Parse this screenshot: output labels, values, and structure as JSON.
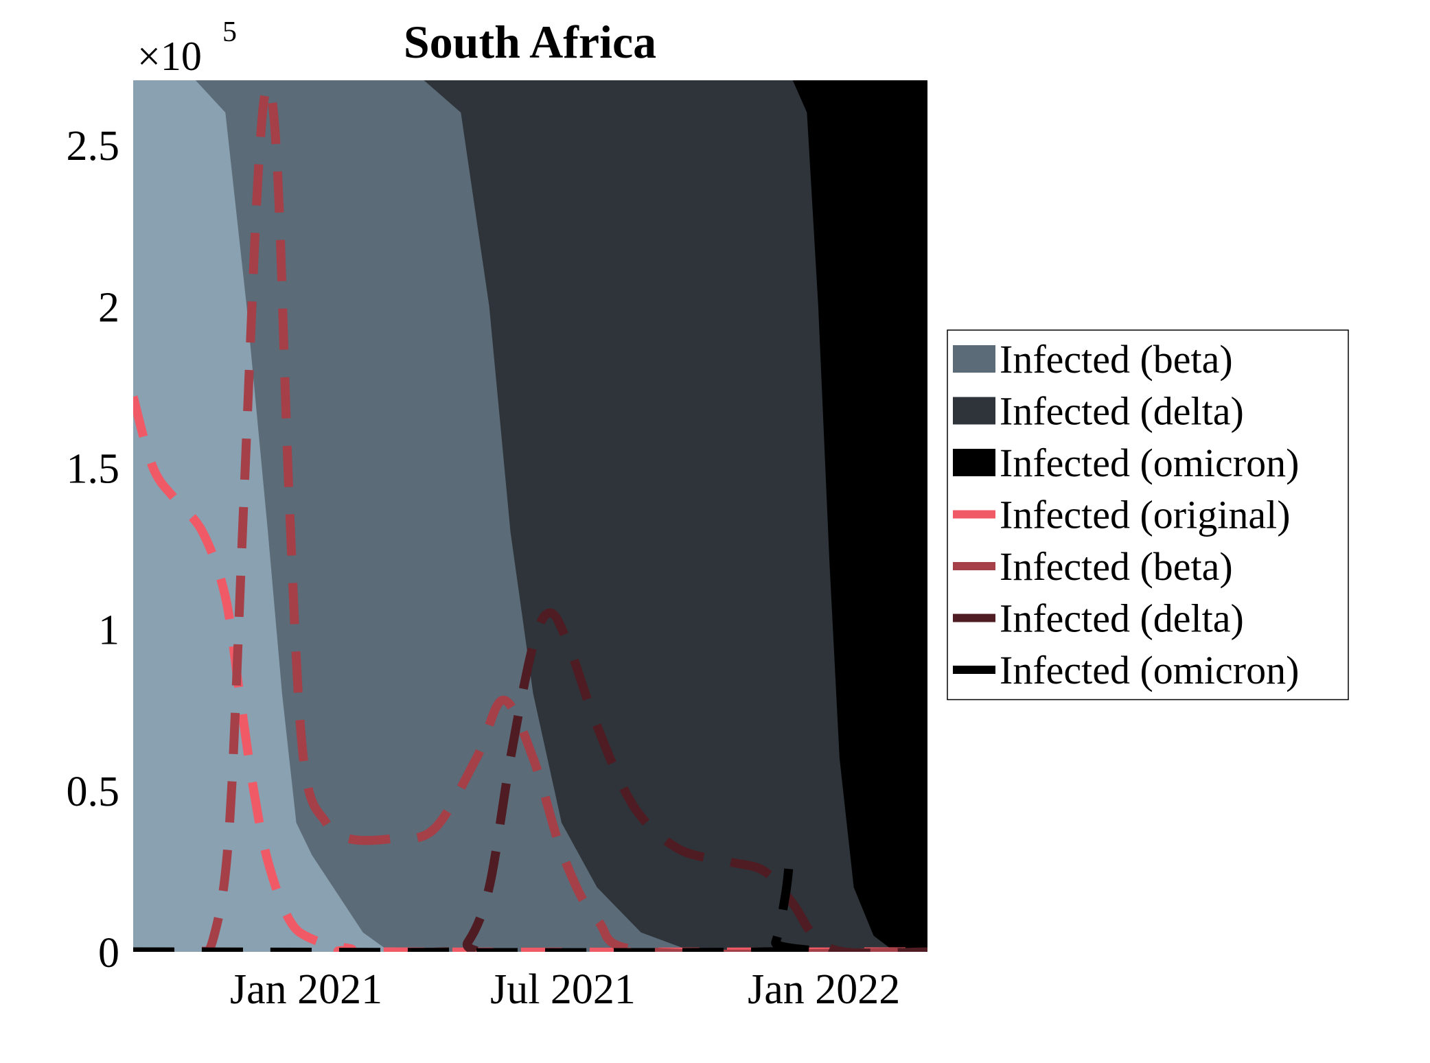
{
  "chart_data": {
    "type": "area",
    "title": "South Africa",
    "xlabel": "",
    "ylabel": "",
    "y_multiplier_label": "×10",
    "y_multiplier_exponent": "5",
    "x_range": [
      "2020-09-01",
      "2022-03-15"
    ],
    "ylim": [
      0,
      2.7
    ],
    "x_ticks": [
      {
        "label": "Jan 2021",
        "date": "2021-01-01"
      },
      {
        "label": "Jul 2021",
        "date": "2021-07-01"
      },
      {
        "label": "Jan 2022",
        "date": "2022-01-01"
      }
    ],
    "y_ticks": [
      {
        "label": "0",
        "value": 0
      },
      {
        "label": "0.5",
        "value": 0.5
      },
      {
        "label": "1",
        "value": 1
      },
      {
        "label": "1.5",
        "value": 1.5
      },
      {
        "label": "2",
        "value": 2
      },
      {
        "label": "2.5",
        "value": 2.5
      }
    ],
    "grid": false,
    "legend_position": "right",
    "background_color": "#89a1b1",
    "areas": [
      {
        "name": "Infected (beta)",
        "color": "#5b6b77",
        "boundary": [
          {
            "date": "2020-10-15",
            "y": 2.7
          },
          {
            "date": "2020-11-05",
            "y": 2.6
          },
          {
            "date": "2020-11-20",
            "y": 2.0
          },
          {
            "date": "2020-12-05",
            "y": 1.3
          },
          {
            "date": "2020-12-15",
            "y": 0.8
          },
          {
            "date": "2020-12-25",
            "y": 0.4
          },
          {
            "date": "2021-01-05",
            "y": 0.3
          },
          {
            "date": "2021-01-20",
            "y": 0.2
          },
          {
            "date": "2021-02-10",
            "y": 0.06
          },
          {
            "date": "2021-03-01",
            "y": 0.0
          }
        ]
      },
      {
        "name": "Infected (delta)",
        "color": "#2e3439",
        "boundary": [
          {
            "date": "2021-03-25",
            "y": 2.7
          },
          {
            "date": "2021-04-20",
            "y": 2.6
          },
          {
            "date": "2021-05-10",
            "y": 2.0
          },
          {
            "date": "2021-05-25",
            "y": 1.3
          },
          {
            "date": "2021-06-10",
            "y": 0.8
          },
          {
            "date": "2021-06-30",
            "y": 0.4
          },
          {
            "date": "2021-07-25",
            "y": 0.2
          },
          {
            "date": "2021-08-25",
            "y": 0.06
          },
          {
            "date": "2021-10-01",
            "y": 0.0
          }
        ]
      },
      {
        "name": "Infected (omicron)",
        "color": "#000000",
        "boundary": [
          {
            "date": "2021-12-10",
            "y": 2.7
          },
          {
            "date": "2021-12-20",
            "y": 2.6
          },
          {
            "date": "2021-12-28",
            "y": 2.0
          },
          {
            "date": "2022-01-05",
            "y": 1.2
          },
          {
            "date": "2022-01-12",
            "y": 0.6
          },
          {
            "date": "2022-01-22",
            "y": 0.2
          },
          {
            "date": "2022-02-05",
            "y": 0.05
          },
          {
            "date": "2022-02-20",
            "y": 0.0
          }
        ]
      }
    ],
    "series": [
      {
        "name": "Infected (original)",
        "color": "#f05a66",
        "points": [
          {
            "date": "2020-09-01",
            "y": 1.72
          },
          {
            "date": "2020-09-15",
            "y": 1.5
          },
          {
            "date": "2020-10-01",
            "y": 1.4
          },
          {
            "date": "2020-10-20",
            "y": 1.3
          },
          {
            "date": "2020-11-05",
            "y": 1.1
          },
          {
            "date": "2020-11-15",
            "y": 0.8
          },
          {
            "date": "2020-11-25",
            "y": 0.5
          },
          {
            "date": "2020-12-05",
            "y": 0.28
          },
          {
            "date": "2020-12-20",
            "y": 0.1
          },
          {
            "date": "2021-01-05",
            "y": 0.04
          },
          {
            "date": "2021-02-01",
            "y": 0.01
          },
          {
            "date": "2021-03-01",
            "y": 0.0
          },
          {
            "date": "2022-03-15",
            "y": 0.0
          }
        ]
      },
      {
        "name": "Infected (beta)",
        "color": "#a53f48",
        "points": [
          {
            "date": "2020-09-01",
            "y": 0.0
          },
          {
            "date": "2020-10-15",
            "y": 0.0
          },
          {
            "date": "2020-10-28",
            "y": 0.05
          },
          {
            "date": "2020-11-08",
            "y": 0.4
          },
          {
            "date": "2020-11-18",
            "y": 1.4
          },
          {
            "date": "2020-11-28",
            "y": 2.4
          },
          {
            "date": "2020-12-05",
            "y": 2.68
          },
          {
            "date": "2020-12-12",
            "y": 2.4
          },
          {
            "date": "2020-12-20",
            "y": 1.4
          },
          {
            "date": "2020-12-30",
            "y": 0.6
          },
          {
            "date": "2021-01-15",
            "y": 0.4
          },
          {
            "date": "2021-02-01",
            "y": 0.35
          },
          {
            "date": "2021-03-01",
            "y": 0.35
          },
          {
            "date": "2021-04-01",
            "y": 0.38
          },
          {
            "date": "2021-05-01",
            "y": 0.6
          },
          {
            "date": "2021-05-20",
            "y": 0.78
          },
          {
            "date": "2021-06-10",
            "y": 0.6
          },
          {
            "date": "2021-07-01",
            "y": 0.3
          },
          {
            "date": "2021-07-25",
            "y": 0.1
          },
          {
            "date": "2021-09-01",
            "y": 0.0
          },
          {
            "date": "2022-03-15",
            "y": 0.0
          }
        ]
      },
      {
        "name": "Infected (delta)",
        "color": "#4e1c22",
        "points": [
          {
            "date": "2020-09-01",
            "y": 0.0
          },
          {
            "date": "2021-04-10",
            "y": 0.0
          },
          {
            "date": "2021-04-25",
            "y": 0.03
          },
          {
            "date": "2021-05-10",
            "y": 0.2
          },
          {
            "date": "2021-05-25",
            "y": 0.6
          },
          {
            "date": "2021-06-10",
            "y": 0.95
          },
          {
            "date": "2021-06-22",
            "y": 1.05
          },
          {
            "date": "2021-07-05",
            "y": 0.95
          },
          {
            "date": "2021-07-25",
            "y": 0.7
          },
          {
            "date": "2021-08-20",
            "y": 0.45
          },
          {
            "date": "2021-09-20",
            "y": 0.32
          },
          {
            "date": "2021-10-25",
            "y": 0.28
          },
          {
            "date": "2021-11-20",
            "y": 0.25
          },
          {
            "date": "2021-12-10",
            "y": 0.15
          },
          {
            "date": "2021-12-25",
            "y": 0.05
          },
          {
            "date": "2022-01-15",
            "y": 0.0
          },
          {
            "date": "2022-03-15",
            "y": 0.0
          }
        ]
      },
      {
        "name": "Infected (omicron)",
        "color": "#000000",
        "points": [
          {
            "date": "2020-09-01",
            "y": 0.0
          },
          {
            "date": "2021-11-20",
            "y": 0.0
          },
          {
            "date": "2021-11-28",
            "y": 0.03
          },
          {
            "date": "2021-12-05",
            "y": 0.18
          },
          {
            "date": "2021-12-08",
            "y": 0.3
          }
        ]
      }
    ]
  }
}
